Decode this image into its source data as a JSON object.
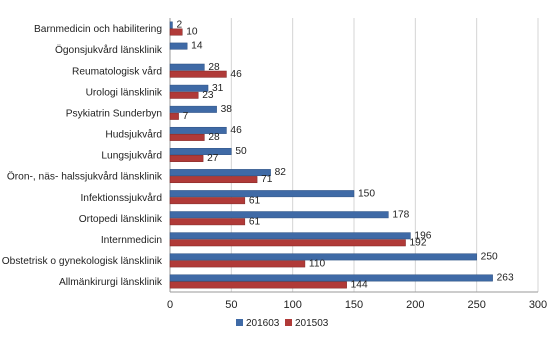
{
  "chart_data": {
    "type": "bar",
    "orientation": "horizontal",
    "title": "",
    "categories": [
      "Barnmedicin och habilitering",
      "Ögonsjukvård länsklinik",
      "Reumatologisk vård",
      "Urologi länsklinik",
      "Psykiatrin Sunderbyn",
      "Hudsjukvård",
      "Lungsjukvård",
      "Öron-, näs- halssjukvård länsklinik",
      "Infektionssjukvård",
      "Ortopedi länsklinik",
      "Internmedicin",
      "Obstetrisk o gynekologisk länsklinik",
      "Allmänkirurgi länsklinik"
    ],
    "series": [
      {
        "name": "201603",
        "color": "#3f6aa6",
        "values": [
          2,
          14,
          28,
          31,
          38,
          46,
          50,
          82,
          150,
          178,
          196,
          250,
          263
        ],
        "labels": [
          "2",
          "14",
          "28",
          "31",
          "38",
          "46",
          "50",
          "82",
          "150",
          "178",
          "196",
          "250",
          "263"
        ]
      },
      {
        "name": "201503",
        "color": "#b03a38",
        "values": [
          10,
          null,
          46,
          23,
          7,
          28,
          27,
          71,
          61,
          61,
          192,
          110,
          144
        ],
        "labels": [
          "10",
          "",
          "46",
          "23",
          "7",
          "28",
          "27",
          "71",
          "61",
          "61",
          "192",
          "110",
          "144"
        ]
      }
    ],
    "xlim": [
      0,
      300
    ],
    "xticks": [
      0,
      50,
      100,
      150,
      200,
      250,
      300
    ],
    "grid": true,
    "legend": "bottom"
  }
}
